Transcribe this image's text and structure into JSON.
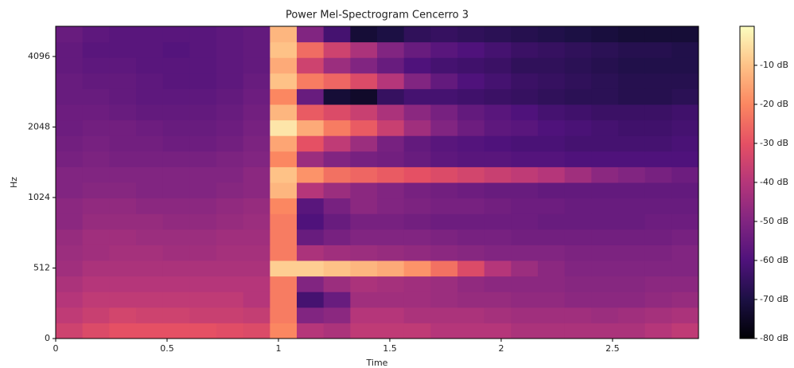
{
  "chart_data": {
    "type": "heatmap",
    "title": "Power Mel-Spectrogram Cencerro 3",
    "xlabel": "Time",
    "ylabel": "Hz",
    "xlim": [
      0,
      2.886
    ],
    "xticks": [
      0,
      0.5,
      1,
      1.5,
      2,
      2.5
    ],
    "ylim": [
      0,
      5512
    ],
    "yscale": "symlog",
    "ylinthresh": 512,
    "yticks": [
      0,
      512,
      1024,
      2048,
      4096
    ],
    "zlim": [
      -80,
      0
    ],
    "colorbar_ticks": [
      {
        "value": -10,
        "label": "-10 dB"
      },
      {
        "value": -20,
        "label": "-20 dB"
      },
      {
        "value": -30,
        "label": "-30 dB"
      },
      {
        "value": -40,
        "label": "-40 dB"
      },
      {
        "value": -50,
        "label": "-50 dB"
      },
      {
        "value": -60,
        "label": "-60 dB"
      },
      {
        "value": -70,
        "label": "-70 dB"
      },
      {
        "value": -80,
        "label": "-80 dB"
      }
    ],
    "colormap": [
      "#000004",
      "#1c1044",
      "#4f127b",
      "#812581",
      "#b5367a",
      "#e55064",
      "#fb8761",
      "#fec287",
      "#fcfdbf"
    ],
    "z": [
      [
        -35,
        -32,
        -30,
        -30,
        -30,
        -30,
        -31,
        -32,
        -20,
        -40,
        -42,
        -38,
        -38,
        -38,
        -40,
        -40,
        -40,
        -42,
        -42,
        -42,
        -42,
        -42,
        -40,
        -38
      ],
      [
        -38,
        -36,
        -34,
        -35,
        -35,
        -36,
        -36,
        -37,
        -22,
        -50,
        -48,
        -40,
        -40,
        -42,
        -42,
        -42,
        -43,
        -44,
        -44,
        -44,
        -45,
        -44,
        -43,
        -42
      ],
      [
        -40,
        -38,
        -38,
        -38,
        -38,
        -38,
        -38,
        -40,
        -22,
        -62,
        -55,
        -44,
        -44,
        -44,
        -45,
        -46,
        -46,
        -47,
        -47,
        -48,
        -48,
        -48,
        -47,
        -46
      ],
      [
        -42,
        -40,
        -40,
        -40,
        -40,
        -40,
        -40,
        -40,
        -22,
        -50,
        -45,
        -42,
        -43,
        -44,
        -45,
        -47,
        -48,
        -48,
        -48,
        -49,
        -49,
        -49,
        -48,
        -48
      ],
      [
        -44,
        -42,
        -42,
        -42,
        -42,
        -42,
        -42,
        -42,
        -8,
        -8,
        -10,
        -12,
        -14,
        -18,
        -24,
        -32,
        -40,
        -45,
        -48,
        -50,
        -50,
        -50,
        -50,
        -50
      ],
      [
        -45,
        -44,
        -43,
        -43,
        -44,
        -44,
        -43,
        -43,
        -22,
        -42,
        -44,
        -45,
        -46,
        -47,
        -48,
        -49,
        -50,
        -50,
        -50,
        -51,
        -51,
        -51,
        -51,
        -50
      ],
      [
        -46,
        -44,
        -44,
        -45,
        -45,
        -45,
        -44,
        -44,
        -22,
        -55,
        -52,
        -50,
        -50,
        -50,
        -51,
        -52,
        -52,
        -53,
        -53,
        -53,
        -53,
        -53,
        -53,
        -52
      ],
      [
        -48,
        -46,
        -46,
        -46,
        -47,
        -47,
        -46,
        -45,
        -22,
        -60,
        -55,
        -52,
        -52,
        -53,
        -54,
        -54,
        -54,
        -54,
        -55,
        -55,
        -55,
        -55,
        -54,
        -54
      ],
      [
        -48,
        -47,
        -47,
        -48,
        -48,
        -48,
        -47,
        -46,
        -20,
        -58,
        -52,
        -48,
        -50,
        -51,
        -52,
        -52,
        -53,
        -54,
        -54,
        -55,
        -55,
        -55,
        -55,
        -55
      ],
      [
        -50,
        -49,
        -49,
        -50,
        -50,
        -50,
        -49,
        -48,
        -12,
        -40,
        -45,
        -48,
        -50,
        -52,
        -53,
        -54,
        -55,
        -55,
        -56,
        -56,
        -56,
        -56,
        -56,
        -56
      ],
      [
        -50,
        -50,
        -50,
        -50,
        -50,
        -50,
        -50,
        -48,
        -10,
        -18,
        -24,
        -26,
        -28,
        -30,
        -32,
        -34,
        -36,
        -38,
        -40,
        -44,
        -48,
        -50,
        -52,
        -54
      ],
      [
        -52,
        -51,
        -52,
        -52,
        -52,
        -52,
        -51,
        -50,
        -20,
        -45,
        -50,
        -52,
        -53,
        -55,
        -57,
        -58,
        -58,
        -59,
        -59,
        -60,
        -60,
        -60,
        -60,
        -60
      ],
      [
        -53,
        -52,
        -53,
        -53,
        -54,
        -54,
        -53,
        -51,
        -15,
        -30,
        -38,
        -45,
        -52,
        -56,
        -58,
        -59,
        -60,
        -61,
        -61,
        -62,
        -62,
        -62,
        -62,
        -61
      ],
      [
        -54,
        -53,
        -53,
        -54,
        -55,
        -55,
        -54,
        -52,
        -4,
        -14,
        -22,
        -28,
        -36,
        -44,
        -50,
        -54,
        -57,
        -58,
        -60,
        -61,
        -62,
        -63,
        -63,
        -62
      ],
      [
        -54,
        -54,
        -55,
        -56,
        -56,
        -56,
        -55,
        -53,
        -12,
        -28,
        -32,
        -36,
        -42,
        -48,
        -52,
        -56,
        -58,
        -60,
        -62,
        -63,
        -64,
        -64,
        -64,
        -63
      ],
      [
        -55,
        -55,
        -56,
        -57,
        -57,
        -57,
        -56,
        -54,
        -20,
        -55,
        -72,
        -74,
        -65,
        -62,
        -62,
        -63,
        -64,
        -65,
        -66,
        -67,
        -67,
        -68,
        -68,
        -67
      ],
      [
        -55,
        -56,
        -56,
        -57,
        -58,
        -58,
        -57,
        -55,
        -10,
        -22,
        -26,
        -32,
        -40,
        -50,
        -56,
        -60,
        -62,
        -64,
        -65,
        -66,
        -67,
        -68,
        -68,
        -68
      ],
      [
        -56,
        -57,
        -57,
        -58,
        -58,
        -58,
        -57,
        -56,
        -14,
        -35,
        -45,
        -50,
        -55,
        -60,
        -62,
        -63,
        -64,
        -66,
        -66,
        -67,
        -68,
        -69,
        -69,
        -69
      ],
      [
        -56,
        -58,
        -58,
        -58,
        -59,
        -58,
        -57,
        -56,
        -10,
        -25,
        -35,
        -42,
        -50,
        -55,
        -58,
        -60,
        -62,
        -64,
        -65,
        -66,
        -67,
        -68,
        -68,
        -69
      ],
      [
        -55,
        -57,
        -58,
        -58,
        -58,
        -58,
        -57,
        -56,
        -12,
        -50,
        -62,
        -72,
        -70,
        -66,
        -65,
        -66,
        -67,
        -68,
        -69,
        -70,
        -71,
        -72,
        -72,
        -72
      ]
    ]
  }
}
